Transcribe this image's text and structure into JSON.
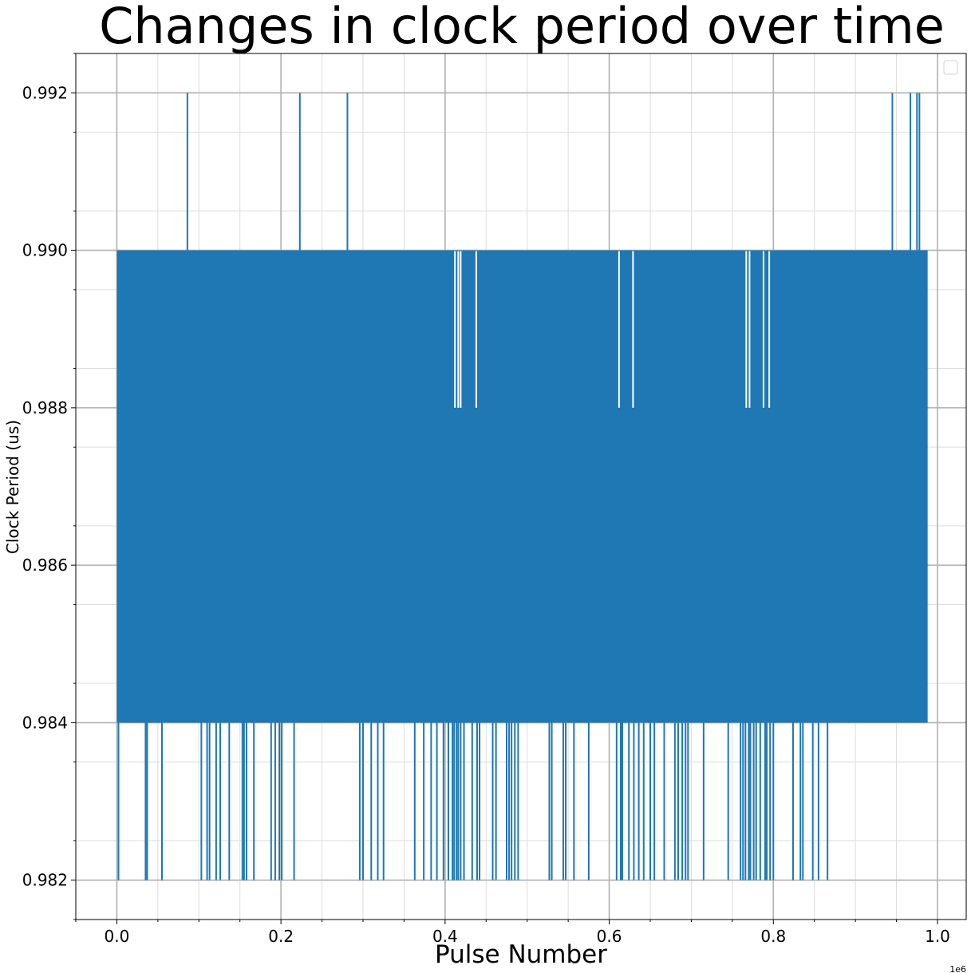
{
  "chart_data": {
    "type": "line",
    "title": "Changes in clock period over time",
    "xlabel": "Pulse Number",
    "ylabel": "Clock Period (us)",
    "x_offset_label": "1e6",
    "xlim": [
      -50000,
      1035000
    ],
    "ylim": [
      0.9815,
      0.9925
    ],
    "x_ticks": [
      0,
      200000,
      400000,
      600000,
      800000,
      1000000
    ],
    "x_tick_labels": [
      "0.0",
      "0.2",
      "0.4",
      "0.6",
      "0.8",
      "1.0"
    ],
    "y_ticks": [
      0.982,
      0.984,
      0.986,
      0.988,
      0.99,
      0.992
    ],
    "y_tick_labels": [
      "0.982",
      "0.984",
      "0.986",
      "0.988",
      "0.990",
      "0.992"
    ],
    "grid": true,
    "minor_grid": true,
    "legend": "top-right (empty)",
    "series": [
      {
        "color": "#1f77b4",
        "x_range": [
          0,
          988000
        ],
        "dense_band": [
          0.984,
          0.99
        ],
        "spikes_up_0_992": [
          86000,
          223000,
          281000,
          945000,
          967000,
          975000,
          978000
        ],
        "spikes_down_0_982": [
          2000,
          35000,
          37000,
          55000,
          103000,
          110000,
          113000,
          121000,
          126000,
          137000,
          153000,
          155000,
          158000,
          167000,
          188000,
          193000,
          198000,
          201000,
          216000,
          296000,
          300000,
          310000,
          318000,
          325000,
          363000,
          374000,
          383000,
          390000,
          398000,
          404000,
          409000,
          411000,
          414000,
          416000,
          419000,
          423000,
          433000,
          439000,
          442000,
          458000,
          462000,
          475000,
          478000,
          481000,
          485000,
          489000,
          527000,
          530000,
          544000,
          547000,
          557000,
          575000,
          609000,
          614000,
          616000,
          624000,
          630000,
          636000,
          642000,
          650000,
          655000,
          667000,
          680000,
          684000,
          689000,
          693000,
          696000,
          715000,
          745000,
          760000,
          763000,
          766000,
          770000,
          772000,
          776000,
          779000,
          784000,
          790000,
          792000,
          796000,
          800000,
          824000,
          833000,
          836000,
          848000,
          855000,
          866000
        ],
        "dips_to_0_988": [
          412000,
          416000,
          419000,
          438000,
          612000,
          629000,
          767000,
          771000,
          788000,
          795000
        ]
      }
    ]
  }
}
